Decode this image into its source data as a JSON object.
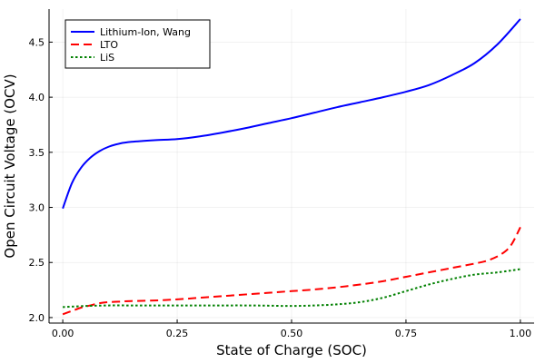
{
  "chart_data": {
    "type": "line",
    "title": "",
    "xlabel": "State of Charge (SOC)",
    "ylabel": "Open Circuit Voltage (OCV)",
    "xlim": [
      -0.03,
      1.03
    ],
    "ylim": [
      1.95,
      4.8
    ],
    "xticks": [
      0.0,
      0.25,
      0.5,
      0.75,
      1.0
    ],
    "xtick_labels": [
      "0.00",
      "0.25",
      "0.50",
      "0.75",
      "1.00"
    ],
    "yticks": [
      2.0,
      2.5,
      3.0,
      3.5,
      4.0,
      4.5
    ],
    "ytick_labels": [
      "2.0",
      "2.5",
      "3.0",
      "3.5",
      "4.0",
      "4.5"
    ],
    "grid": true,
    "legend_position": "top-left",
    "series": [
      {
        "name": "Lithium-Ion, Wang",
        "color": "#0000ff",
        "dash": "solid",
        "x": [
          0.0,
          0.02,
          0.04,
          0.06,
          0.08,
          0.1,
          0.125,
          0.15,
          0.2,
          0.25,
          0.3,
          0.35,
          0.4,
          0.45,
          0.5,
          0.55,
          0.6,
          0.65,
          0.7,
          0.75,
          0.8,
          0.85,
          0.9,
          0.95,
          1.0
        ],
        "y": [
          2.99,
          3.22,
          3.36,
          3.45,
          3.51,
          3.55,
          3.58,
          3.595,
          3.61,
          3.62,
          3.645,
          3.68,
          3.72,
          3.765,
          3.81,
          3.86,
          3.91,
          3.955,
          4.0,
          4.05,
          4.11,
          4.2,
          4.31,
          4.48,
          4.71
        ]
      },
      {
        "name": "LTO",
        "color": "#ff0000",
        "dash": "dashed",
        "x": [
          0.0,
          0.02,
          0.04,
          0.06,
          0.08,
          0.1,
          0.125,
          0.15,
          0.2,
          0.25,
          0.3,
          0.35,
          0.4,
          0.45,
          0.5,
          0.55,
          0.6,
          0.65,
          0.7,
          0.75,
          0.8,
          0.85,
          0.9,
          0.93,
          0.96,
          0.98,
          1.0
        ],
        "y": [
          2.03,
          2.06,
          2.09,
          2.11,
          2.13,
          2.14,
          2.145,
          2.15,
          2.155,
          2.165,
          2.18,
          2.195,
          2.21,
          2.225,
          2.24,
          2.255,
          2.275,
          2.3,
          2.33,
          2.37,
          2.41,
          2.45,
          2.49,
          2.52,
          2.58,
          2.66,
          2.82
        ]
      },
      {
        "name": "LiS",
        "color": "#008000",
        "dash": "dotted",
        "x": [
          0.0,
          0.05,
          0.1,
          0.15,
          0.2,
          0.25,
          0.3,
          0.35,
          0.4,
          0.45,
          0.5,
          0.55,
          0.6,
          0.65,
          0.7,
          0.75,
          0.8,
          0.85,
          0.9,
          0.95,
          1.0
        ],
        "y": [
          2.095,
          2.105,
          2.11,
          2.11,
          2.11,
          2.11,
          2.11,
          2.11,
          2.11,
          2.108,
          2.105,
          2.11,
          2.12,
          2.14,
          2.18,
          2.24,
          2.3,
          2.35,
          2.39,
          2.41,
          2.44
        ]
      }
    ]
  }
}
